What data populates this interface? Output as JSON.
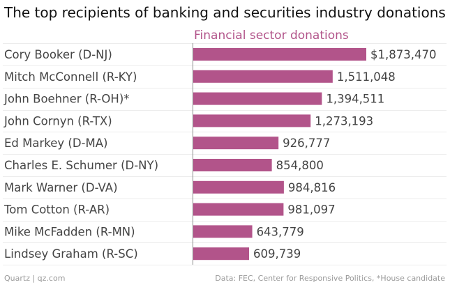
{
  "colors": {
    "bar": "#b2548a",
    "series_label": "#b2548a",
    "text": "#444444",
    "grid": "#ececec",
    "axis": "#8a8a8a"
  },
  "chart_data": {
    "type": "bar",
    "orientation": "horizontal",
    "title": "The top recipients of banking and securities industry donations",
    "series": [
      {
        "name": "Financial sector donations",
        "values": [
          1873470,
          1511048,
          1394511,
          1273193,
          926777,
          854800,
          984816,
          981097,
          643779,
          609739
        ]
      }
    ],
    "categories": [
      "Cory Booker (D-NJ)",
      "Mitch McConnell (R-KY)",
      "John Boehner (R-OH)*",
      "John Cornyn (R-TX)",
      "Ed Markey (D-MA)",
      "Charles E. Schumer (D-NY)",
      "Mark Warner (D-VA)",
      "Tom Cotton (R-AR)",
      "Mike McFadden (R-MN)",
      "Lindsey Graham (R-SC)"
    ],
    "value_labels": [
      "$1,873,470",
      "1,511,048",
      "1,394,511",
      "1,273,193",
      "926,777",
      "854,800",
      "984,816",
      "981,097",
      "643,779",
      "609,739"
    ],
    "grid": true
  },
  "footer": {
    "source_left": "Quartz | qz.com",
    "source_right": "Data: FEC, Center for Responsive Politics, *House candidate"
  }
}
